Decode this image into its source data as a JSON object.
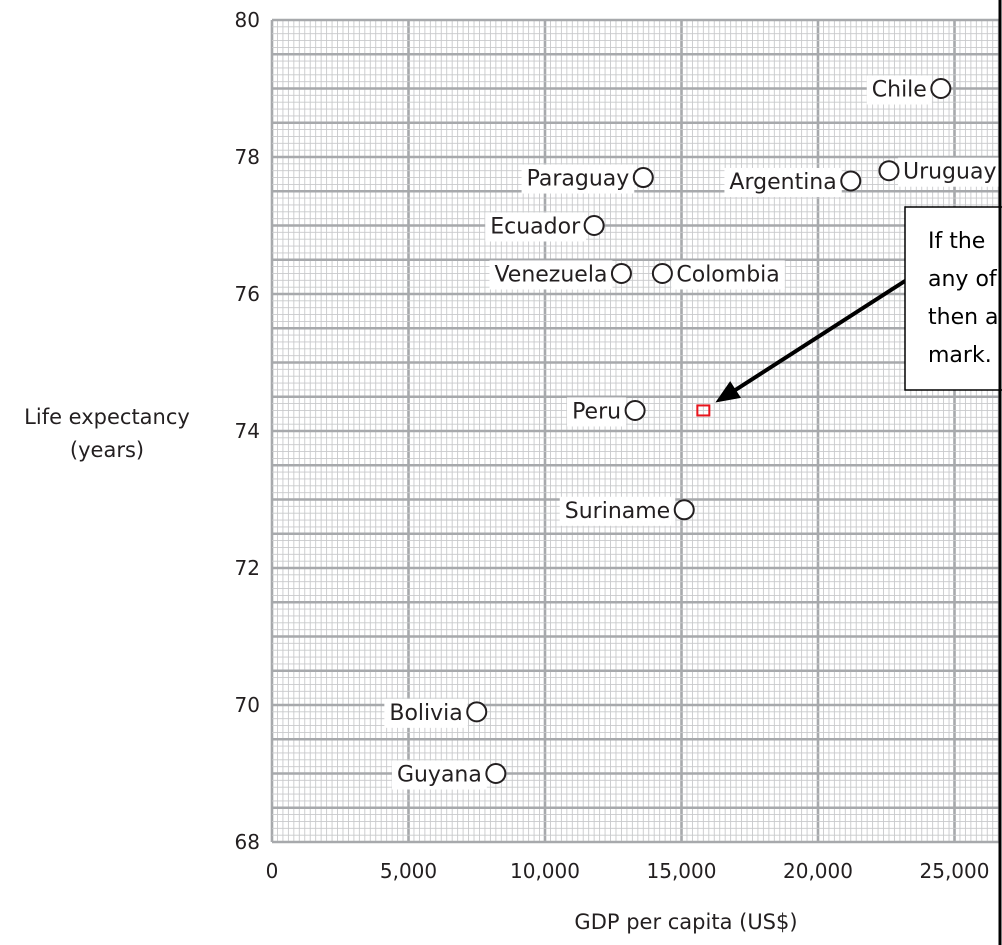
{
  "chart_data": {
    "type": "scatter",
    "xlabel": "GDP per capita (US$)",
    "ylabel_lines": [
      "Life expectancy",
      "(years)"
    ],
    "xlim": [
      0,
      25000
    ],
    "ylim": [
      68,
      80
    ],
    "x_ticks": [
      0,
      5000,
      10000,
      15000,
      20000,
      25000
    ],
    "x_tick_labels": [
      "0",
      "5,000",
      "10,000",
      "15,000",
      "20,000",
      "25,000"
    ],
    "y_ticks": [
      68,
      70,
      72,
      74,
      76,
      78,
      80
    ],
    "y_tick_labels": [
      "68",
      "70",
      "72",
      "74",
      "76",
      "78",
      "80"
    ],
    "grid": true,
    "points": [
      {
        "label": "Chile",
        "x": 24500,
        "y": 79.0,
        "label_side": "left"
      },
      {
        "label": "Paraguay",
        "x": 13600,
        "y": 77.7,
        "label_side": "left"
      },
      {
        "label": "Argentina",
        "x": 21200,
        "y": 77.65,
        "label_side": "left"
      },
      {
        "label": "Uruguay",
        "x": 22600,
        "y": 77.8,
        "label_side": "right"
      },
      {
        "label": "Ecuador",
        "x": 11800,
        "y": 77.0,
        "label_side": "left"
      },
      {
        "label": "Venezuela",
        "x": 12800,
        "y": 76.3,
        "label_side": "left"
      },
      {
        "label": "Colombia",
        "x": 14300,
        "y": 76.3,
        "label_side": "right"
      },
      {
        "label": "Peru",
        "x": 13300,
        "y": 74.3,
        "label_side": "left"
      },
      {
        "label": "Suriname",
        "x": 15100,
        "y": 72.85,
        "label_side": "left"
      },
      {
        "label": "Bolivia",
        "x": 7500,
        "y": 69.9,
        "label_side": "left"
      },
      {
        "label": "Guyana",
        "x": 8200,
        "y": 69.0,
        "label_side": "left"
      }
    ],
    "marked_point": {
      "x": 15800,
      "y": 74.3,
      "color": "#e8141c"
    },
    "callout_lines": [
      "If the",
      "any of",
      "then a",
      "mark."
    ]
  },
  "colors": {
    "grid_fine": "#c8c9cb",
    "grid_major": "#a7a9ac",
    "text": "#231f20",
    "marker_red": "#e8141c",
    "arrow": "#000000"
  }
}
